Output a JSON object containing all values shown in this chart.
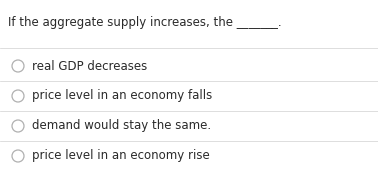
{
  "question": "If the aggregate supply increases, the _______.",
  "options": [
    "real GDP decreases",
    "price level in an economy falls",
    "demand would stay the same.",
    "price level in an economy rise"
  ],
  "background_color": "#ffffff",
  "text_color": "#2a2a2a",
  "question_fontsize": 8.5,
  "option_fontsize": 8.5,
  "circle_color": "#b0b0b0",
  "divider_color": "#d0d0d0",
  "divider_linewidth": 0.5,
  "fig_width": 3.78,
  "fig_height": 1.8,
  "dpi": 100
}
